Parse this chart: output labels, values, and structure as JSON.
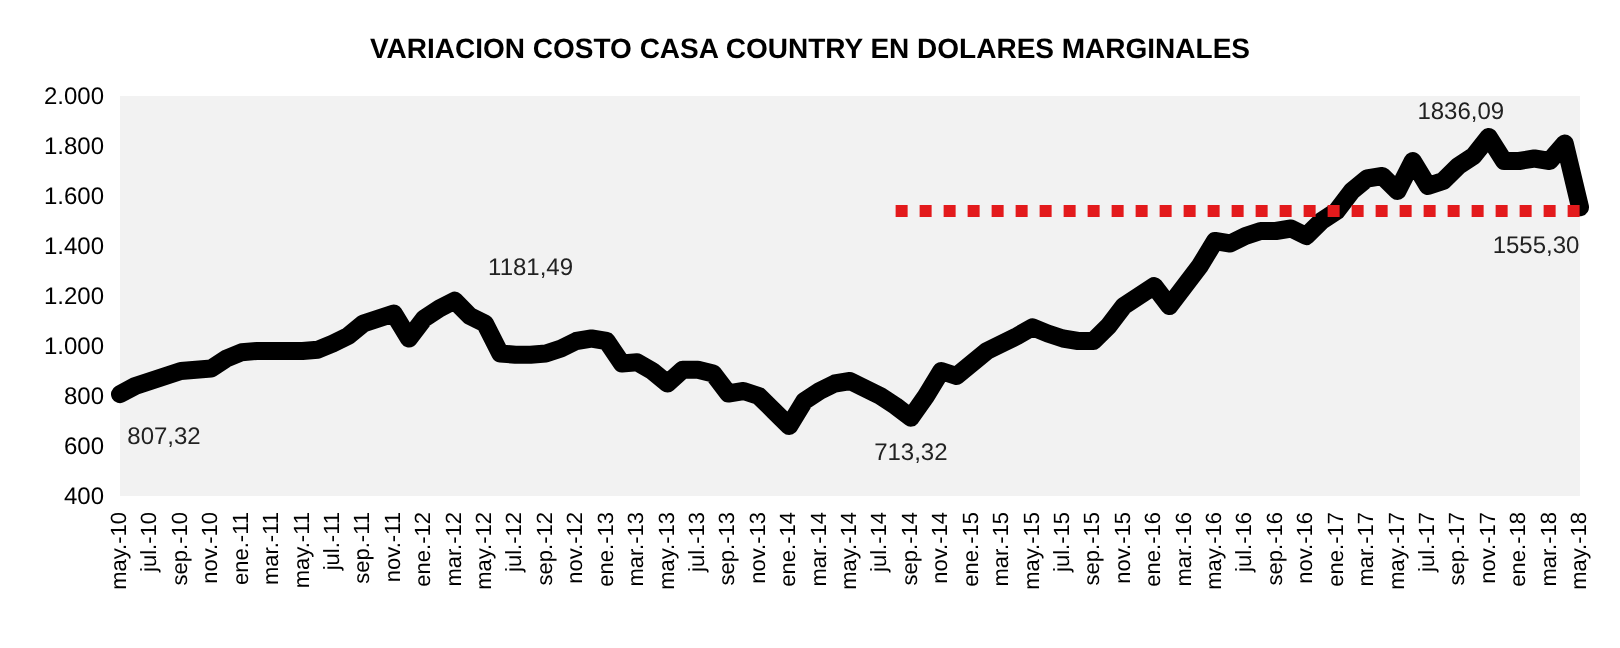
{
  "chart_data": {
    "type": "line",
    "title": "VARIACION COSTO CASA COUNTRY EN DOLARES MARGINALES",
    "categories": [
      "may.-10",
      null,
      "jul.-10",
      null,
      "sep.-10",
      null,
      "nov.-10",
      null,
      "ene.-11",
      null,
      "mar.-11",
      null,
      "may.-11",
      null,
      "jul.-11",
      null,
      "sep.-11",
      null,
      "nov.-11",
      null,
      "ene.-12",
      null,
      "mar.-12",
      null,
      "may.-12",
      null,
      "jul.-12",
      null,
      "sep.-12",
      null,
      "nov.-12",
      null,
      "ene.-13",
      null,
      "mar.-13",
      null,
      "may.-13",
      null,
      "jul.-13",
      null,
      "sep.-13",
      null,
      "nov.-13",
      null,
      "ene.-14",
      null,
      "mar.-14",
      null,
      "may.-14",
      null,
      "jul.-14",
      null,
      "sep.-14",
      null,
      "nov.-14",
      null,
      "ene.-15",
      null,
      "mar.-15",
      null,
      "may.-15",
      null,
      "jul.-15",
      null,
      "sep.-15",
      null,
      "nov.-15",
      null,
      "ene.-16",
      null,
      "mar.-16",
      null,
      "may.-16",
      null,
      "jul.-16",
      null,
      "sep.-16",
      null,
      "nov.-16",
      null,
      "ene.-17",
      null,
      "mar.-17",
      null,
      "may.-17",
      null,
      "jul.-17",
      null,
      "sep.-17",
      null,
      "nov.-17",
      null,
      "ene.-18",
      null,
      "mar.-18",
      null,
      "may.-18"
    ],
    "series": [
      {
        "color": "#000000",
        "values": [
          807.32,
          840,
          860,
          880,
          900,
          905,
          910,
          950,
          975,
          980,
          980,
          980,
          980,
          985,
          1010,
          1040,
          1090,
          1110,
          1130,
          1030,
          1110,
          1150,
          1181.49,
          1120,
          1090,
          970,
          965,
          965,
          970,
          990,
          1020,
          1030,
          1020,
          930,
          935,
          900,
          850,
          905,
          905,
          890,
          810,
          820,
          800,
          740,
          680,
          780,
          820,
          850,
          860,
          830,
          800,
          760,
          713.32,
          800,
          900,
          880,
          930,
          980,
          1010,
          1040,
          1075,
          1050,
          1030,
          1020,
          1020,
          1080,
          1160,
          1200,
          1240,
          1160,
          1240,
          1320,
          1420,
          1410,
          1440,
          1460,
          1460,
          1470,
          1440,
          1500,
          1540,
          1620,
          1670,
          1680,
          1620,
          1740,
          1640,
          1660,
          1720,
          1760,
          1836.09,
          1740,
          1740,
          1750,
          1740,
          1810,
          1555.3
        ],
        "value_labels": [
          "807,32",
          null,
          null,
          null,
          null,
          null,
          null,
          null,
          null,
          null,
          null,
          null,
          null,
          null,
          null,
          null,
          null,
          null,
          null,
          null,
          null,
          null,
          "1181,49",
          null,
          null,
          null,
          null,
          null,
          null,
          null,
          null,
          null,
          null,
          null,
          null,
          null,
          null,
          null,
          null,
          null,
          null,
          null,
          null,
          null,
          null,
          null,
          null,
          null,
          null,
          null,
          null,
          null,
          "713,32",
          null,
          null,
          null,
          null,
          null,
          null,
          null,
          null,
          null,
          null,
          null,
          null,
          null,
          null,
          null,
          null,
          null,
          null,
          null,
          null,
          null,
          null,
          null,
          null,
          null,
          null,
          null,
          null,
          null,
          null,
          null,
          null,
          null,
          null,
          null,
          null,
          null,
          "1836,09",
          null,
          null,
          null,
          null,
          null,
          "1555,30"
        ]
      },
      {
        "color": "#e31a1c",
        "line_style": "dotted",
        "values": [
          null,
          null,
          null,
          null,
          null,
          null,
          null,
          null,
          null,
          null,
          null,
          null,
          null,
          null,
          null,
          null,
          null,
          null,
          null,
          null,
          null,
          null,
          null,
          null,
          null,
          null,
          null,
          null,
          null,
          null,
          null,
          null,
          null,
          null,
          null,
          null,
          null,
          null,
          null,
          null,
          null,
          null,
          null,
          null,
          null,
          null,
          null,
          null,
          null,
          null,
          null,
          1540,
          1540,
          1540,
          1540,
          1540,
          1540,
          1540,
          1540,
          1540,
          1540,
          1540,
          1540,
          1540,
          1540,
          1540,
          1540,
          1540,
          1540,
          1540,
          1540,
          1540,
          1540,
          1540,
          1540,
          1540,
          1540,
          1540,
          1540,
          1540,
          1540,
          1540,
          1540,
          1540,
          1540,
          1540,
          1540,
          1540,
          1540,
          1540,
          1540,
          1540,
          1540,
          1540,
          1540,
          1540,
          1540
        ]
      }
    ],
    "ylim": [
      400,
      2000
    ],
    "yticks": [
      {
        "value": 400,
        "label": "400"
      },
      {
        "value": 600,
        "label": "600"
      },
      {
        "value": 800,
        "label": "800"
      },
      {
        "value": 1000,
        "label": "1.000"
      },
      {
        "value": 1200,
        "label": "1.200"
      },
      {
        "value": 1400,
        "label": "1.400"
      },
      {
        "value": 1600,
        "label": "1.600"
      },
      {
        "value": 1800,
        "label": "1.800"
      },
      {
        "value": 2000,
        "label": "2.000"
      }
    ],
    "grid": false,
    "marker": "none",
    "line_style": "solid"
  }
}
